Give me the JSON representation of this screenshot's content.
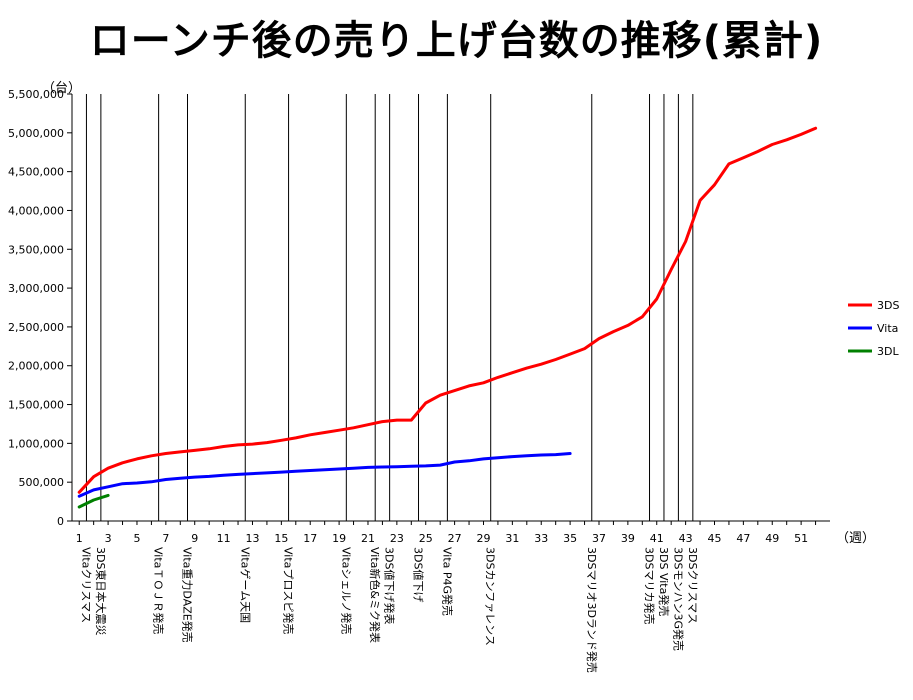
{
  "chart_data": {
    "type": "line",
    "title": "ローンチ後の売り上げ台数の推移(累計)",
    "ylabel": "（台）",
    "xlabel": "（週）",
    "ylim": [
      0,
      5500000
    ],
    "yticks": [
      0,
      500000,
      1000000,
      1500000,
      2000000,
      2500000,
      3000000,
      3500000,
      4000000,
      4500000,
      5000000,
      5500000
    ],
    "ytick_labels": [
      "0",
      "500,000",
      "1,000,000",
      "1,500,000",
      "2,000,000",
      "2,500,000",
      "3,000,000",
      "3,500,000",
      "4,000,000",
      "4,500,000",
      "5,000,000",
      "5,500,000"
    ],
    "xlim": [
      1,
      52
    ],
    "xticks": [
      1,
      3,
      5,
      7,
      9,
      11,
      13,
      15,
      17,
      19,
      21,
      23,
      25,
      27,
      29,
      31,
      33,
      35,
      37,
      39,
      41,
      43,
      45,
      47,
      49,
      51
    ],
    "legend_position": "right",
    "grid": false,
    "series": [
      {
        "name": "3DS",
        "color": "#ff0000",
        "x": [
          1,
          2,
          3,
          4,
          5,
          6,
          7,
          8,
          9,
          10,
          11,
          12,
          13,
          14,
          15,
          16,
          17,
          18,
          19,
          20,
          21,
          22,
          23,
          24,
          25,
          26,
          27,
          28,
          29,
          30,
          31,
          32,
          33,
          34,
          35,
          36,
          37,
          38,
          39,
          40,
          41,
          42,
          43,
          44,
          45,
          46,
          47,
          48,
          49,
          50,
          51,
          52
        ],
        "values": [
          370000,
          570000,
          680000,
          750000,
          800000,
          840000,
          870000,
          890000,
          910000,
          930000,
          960000,
          980000,
          990000,
          1010000,
          1040000,
          1070000,
          1110000,
          1140000,
          1170000,
          1200000,
          1240000,
          1280000,
          1300000,
          1300000,
          1520000,
          1620000,
          1680000,
          1740000,
          1780000,
          1850000,
          1910000,
          1970000,
          2020000,
          2080000,
          2150000,
          2220000,
          2350000,
          2440000,
          2520000,
          2630000,
          2860000,
          3240000,
          3600000,
          4130000,
          4330000,
          4600000,
          4680000,
          4760000,
          4850000,
          4910000,
          4980000,
          5060000
        ]
      },
      {
        "name": "Vita",
        "color": "#0000ff",
        "x": [
          1,
          2,
          3,
          4,
          5,
          6,
          7,
          8,
          9,
          10,
          11,
          12,
          13,
          14,
          15,
          16,
          17,
          18,
          19,
          20,
          21,
          22,
          23,
          24,
          25,
          26,
          27,
          28,
          29,
          30,
          31,
          32,
          33,
          34,
          35
        ],
        "values": [
          320000,
          400000,
          440000,
          480000,
          490000,
          505000,
          535000,
          550000,
          565000,
          575000,
          590000,
          600000,
          610000,
          620000,
          630000,
          640000,
          650000,
          660000,
          670000,
          680000,
          690000,
          695000,
          700000,
          705000,
          710000,
          720000,
          760000,
          775000,
          800000,
          815000,
          830000,
          840000,
          850000,
          855000,
          870000
        ]
      },
      {
        "name": "3DL",
        "color": "#008000",
        "x": [
          1,
          2,
          3
        ],
        "values": [
          180000,
          270000,
          330000
        ]
      }
    ],
    "annotations": [
      {
        "x": 2,
        "label": "Vitaクリスマス"
      },
      {
        "x": 3,
        "label": "3DS東日本大震災"
      },
      {
        "x": 7,
        "label": "VitaＴＯＪＲ発売"
      },
      {
        "x": 9,
        "label": "Vita重力DAZE発売"
      },
      {
        "x": 13,
        "label": "Vitaゲーム天国"
      },
      {
        "x": 16,
        "label": "Vitaプロスピ発売"
      },
      {
        "x": 20,
        "label": "Vitaシェルノ発売"
      },
      {
        "x": 22,
        "label": "Vita新色&ミク発表"
      },
      {
        "x": 23,
        "label": "3DS値下げ発表"
      },
      {
        "x": 25,
        "label": "3DS値下げ"
      },
      {
        "x": 27,
        "label": "Vita P4G発売"
      },
      {
        "x": 30,
        "label": "3DSカンファレンス"
      },
      {
        "x": 37,
        "label": "3DSマリオ3Dランド発売"
      },
      {
        "x": 41,
        "label": "3DSマリカ発売"
      },
      {
        "x": 42,
        "label": "3DS Vita発売"
      },
      {
        "x": 43,
        "label": "3DSモンハン3G発売"
      },
      {
        "x": 44,
        "label": "3DSクリスマス"
      }
    ]
  }
}
